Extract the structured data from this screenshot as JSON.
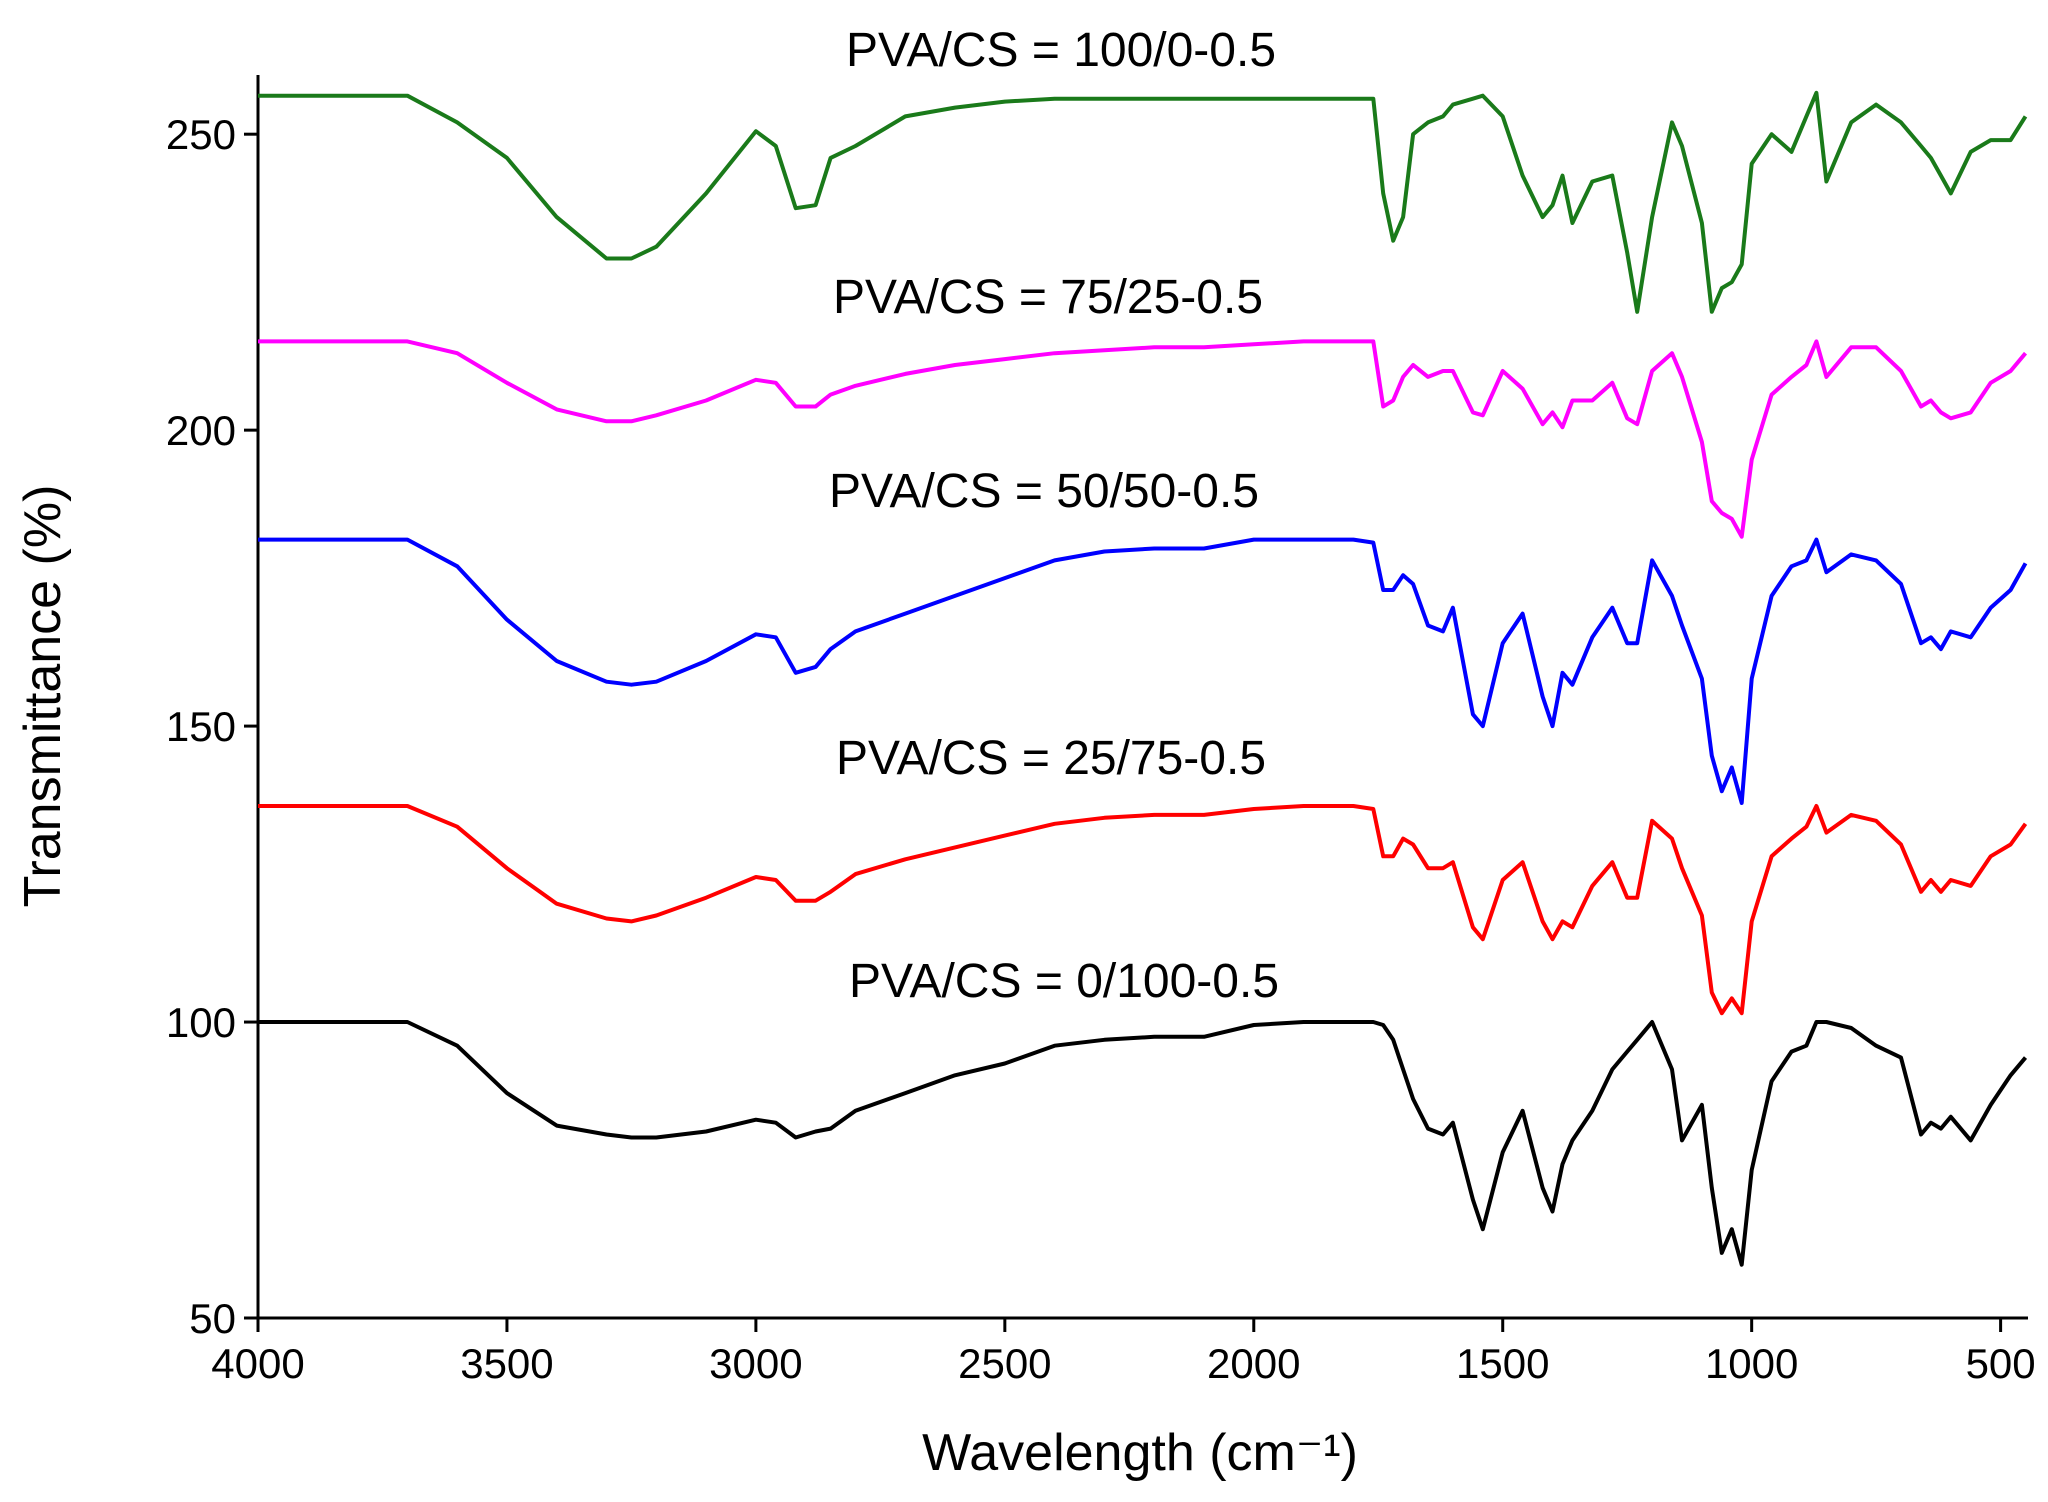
{
  "chart_data": {
    "type": "line",
    "xlabel": "Wavelength (cm⁻¹)",
    "ylabel": "Transmittance (%)",
    "xlim": [
      4000,
      445
    ],
    "ylim": [
      50,
      260
    ],
    "xticks": [
      4000,
      3500,
      3000,
      2500,
      2000,
      1500,
      1000,
      500
    ],
    "yticks": [
      50,
      100,
      150,
      200,
      250
    ],
    "grid": false,
    "x": [
      4000,
      3700,
      3600,
      3500,
      3400,
      3300,
      3250,
      3200,
      3100,
      3000,
      2960,
      2920,
      2880,
      2850,
      2800,
      2700,
      2600,
      2500,
      2400,
      2300,
      2200,
      2100,
      2000,
      1900,
      1800,
      1760,
      1740,
      1720,
      1700,
      1680,
      1650,
      1620,
      1600,
      1560,
      1540,
      1500,
      1460,
      1420,
      1400,
      1380,
      1360,
      1320,
      1280,
      1250,
      1230,
      1200,
      1160,
      1140,
      1100,
      1080,
      1060,
      1040,
      1020,
      1000,
      960,
      920,
      890,
      870,
      850,
      800,
      750,
      700,
      660,
      640,
      620,
      600,
      560,
      520,
      480,
      450
    ],
    "series": [
      {
        "name": "PVA/CS = 100/0-0.5",
        "color": "#1a7a1a",
        "values": [
          256.5,
          256.5,
          252,
          246,
          236,
          229,
          229,
          231,
          240,
          250.5,
          248,
          237.5,
          238,
          246,
          248,
          253,
          254.5,
          255.5,
          256,
          256,
          256,
          256,
          256,
          256,
          256,
          256,
          240,
          232,
          236,
          250,
          252,
          253,
          255,
          256,
          256.5,
          253,
          243,
          236,
          238,
          243,
          235,
          242,
          243,
          230,
          220,
          236,
          252,
          248,
          235,
          220,
          224,
          225,
          228,
          245,
          250,
          247,
          253,
          257,
          242,
          252,
          255,
          252,
          248,
          246,
          243,
          240,
          247,
          249,
          249,
          253
        ]
      },
      {
        "name": "PVA/CS = 75/25-0.5",
        "color": "#ff00ff",
        "values": [
          215,
          215,
          213,
          208,
          203.5,
          201.5,
          201.5,
          202.5,
          205,
          208.5,
          208,
          204,
          204,
          206,
          207.5,
          209.5,
          211,
          212,
          213,
          213.5,
          214,
          214,
          214.5,
          215,
          215,
          215,
          204,
          205,
          209,
          211,
          209,
          210,
          210,
          203,
          202.5,
          210,
          207,
          201,
          203,
          200.5,
          205,
          205,
          208,
          202,
          201,
          210,
          213,
          209,
          198,
          188,
          186,
          185,
          182,
          195,
          206,
          209,
          211,
          215,
          209,
          214,
          214,
          210,
          204,
          205,
          203,
          202,
          203,
          208,
          210,
          213
        ]
      },
      {
        "name": "PVA/CS = 50/50-0.5",
        "color": "#0000ff",
        "values": [
          181.5,
          181.5,
          177,
          168,
          161,
          157.5,
          157,
          157.5,
          161,
          165.5,
          165,
          159,
          160,
          163,
          166,
          169,
          172,
          175,
          178,
          179.5,
          180,
          180,
          181.5,
          181.5,
          181.5,
          181,
          173,
          173,
          175.5,
          174,
          167,
          166,
          170,
          152,
          150,
          164,
          169,
          155,
          150,
          159,
          157,
          165,
          170,
          164,
          164,
          178,
          172,
          167,
          158,
          145,
          139,
          143,
          137,
          158,
          172,
          177,
          178,
          181.5,
          176,
          179,
          178,
          174,
          164,
          165,
          163,
          166,
          165,
          170,
          173,
          177.5
        ]
      },
      {
        "name": "PVA/CS = 25/75-0.5",
        "color": "#ff0000",
        "values": [
          136.5,
          136.5,
          133,
          126,
          120,
          117.5,
          117,
          118,
          121,
          124.5,
          124,
          120.5,
          120.5,
          122,
          125,
          127.5,
          129.5,
          131.5,
          133.5,
          134.5,
          135,
          135,
          136,
          136.5,
          136.5,
          136,
          128,
          128,
          131,
          130,
          126,
          126,
          127,
          116,
          114,
          124,
          127,
          117,
          114,
          117,
          116,
          123,
          127,
          121,
          121,
          134,
          131,
          126,
          118,
          105,
          101.5,
          104,
          101.5,
          117,
          128,
          131,
          133,
          136.5,
          132,
          135,
          134,
          130,
          122,
          124,
          122,
          124,
          123,
          128,
          130,
          133.5
        ]
      },
      {
        "name": "PVA/CS = 0/100-0.5",
        "color": "#000000",
        "values": [
          100,
          100,
          96,
          88,
          82.5,
          81,
          80.5,
          80.5,
          81.5,
          83.5,
          83,
          80.5,
          81.5,
          82,
          85,
          88,
          91,
          93,
          96,
          97,
          97.5,
          97.5,
          99.5,
          100,
          100,
          100,
          99.5,
          97,
          92,
          87,
          82,
          81,
          83,
          70,
          65,
          78,
          85,
          72,
          68,
          76,
          80,
          85,
          92,
          95,
          97,
          100,
          92,
          80,
          86,
          72,
          61,
          65,
          59,
          75,
          90,
          95,
          96,
          100,
          100,
          99,
          96,
          94,
          81,
          83,
          82,
          84,
          80,
          86,
          91,
          94
        ]
      }
    ]
  }
}
